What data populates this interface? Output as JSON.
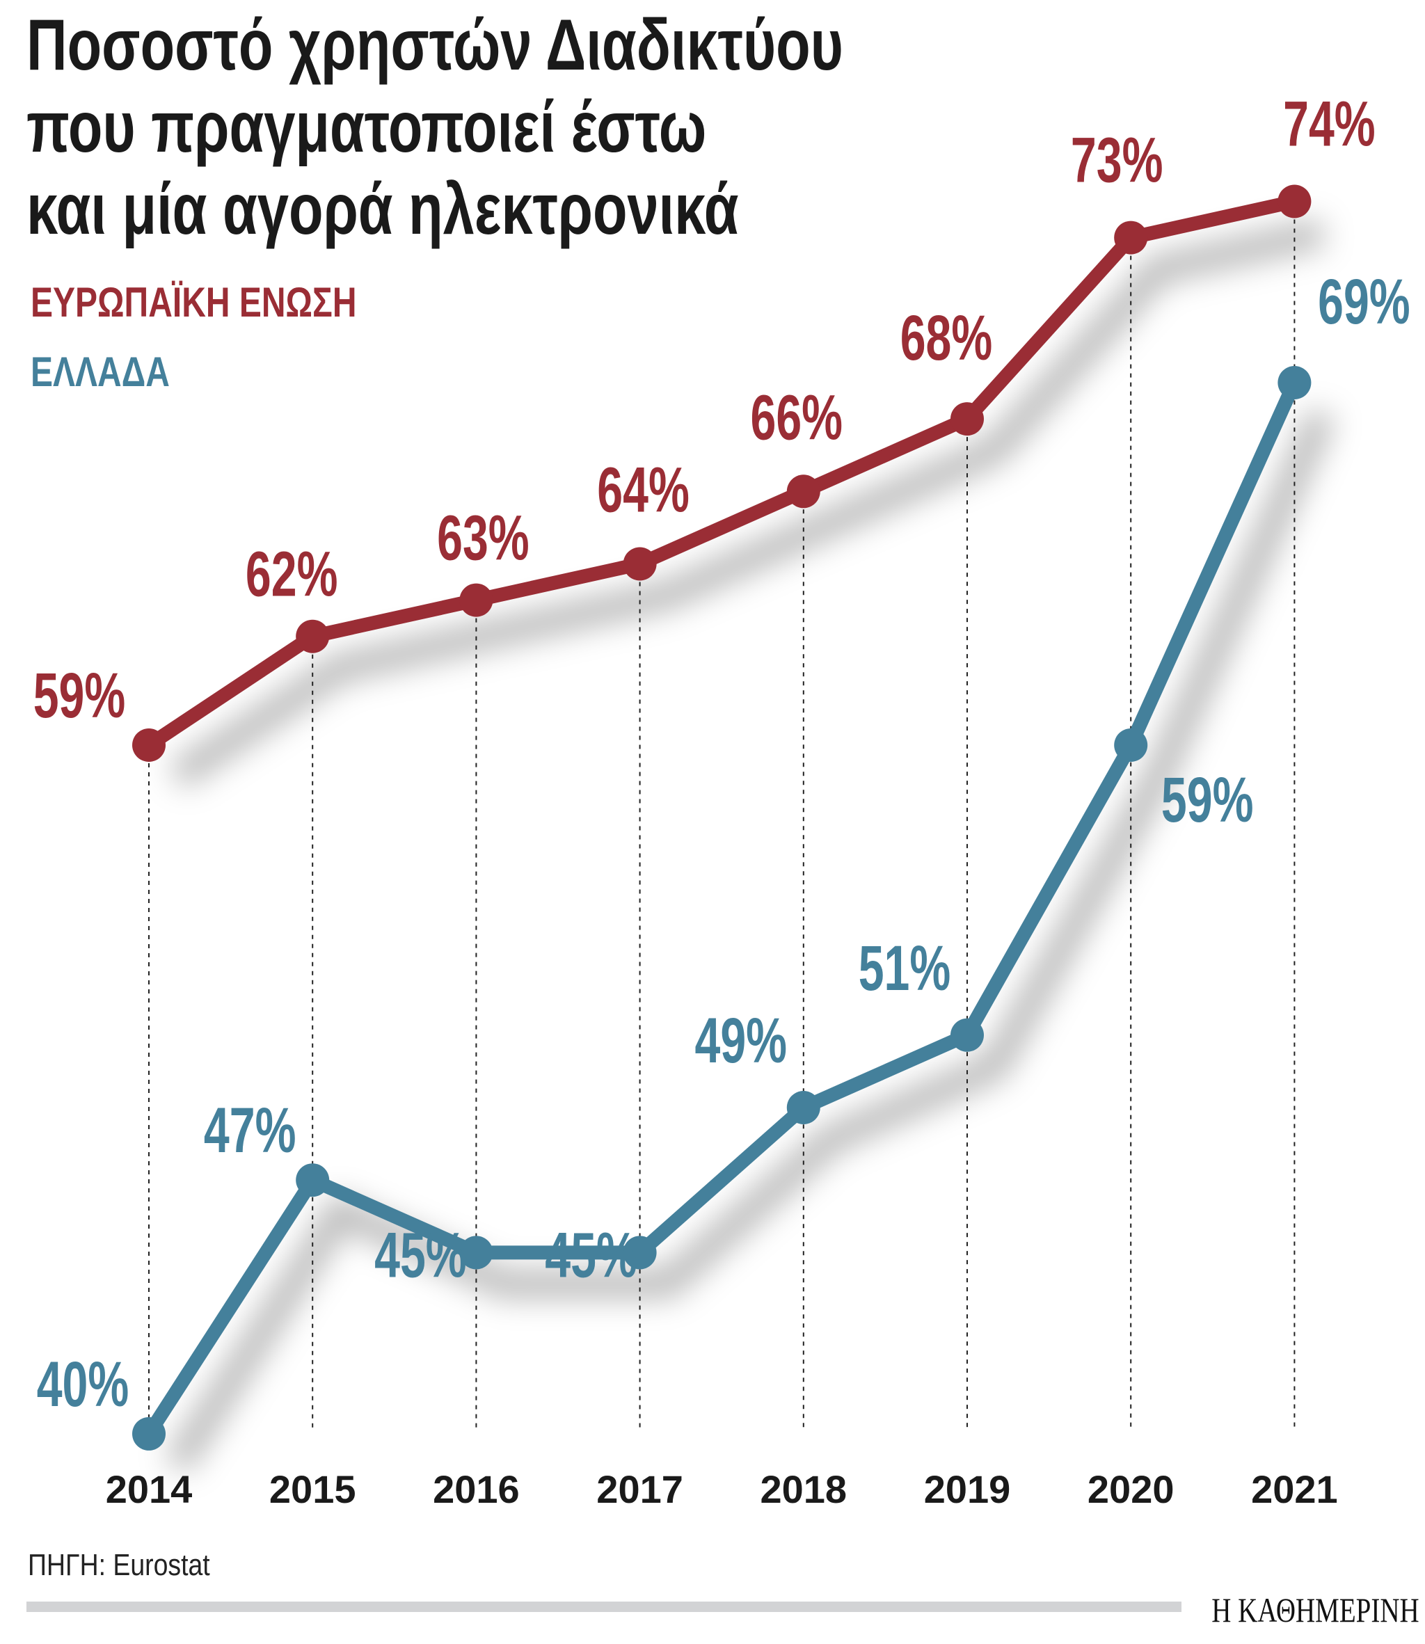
{
  "chart_data": {
    "type": "line",
    "title": "Ποσοστό χρηστών Διαδικτύου που πραγματοποιεί έστω και μία αγορά ηλεκτρονικά",
    "title_lines": [
      "Ποσοστό χρηστών Διαδικτύου",
      "που πραγματοποιεί έστω",
      "και μία αγορά ηλεκτρονικά"
    ],
    "categories": [
      "2014",
      "2015",
      "2016",
      "2017",
      "2018",
      "2019",
      "2020",
      "2021"
    ],
    "series": [
      {
        "name": "ΕΥΡΩΠΑΪΚΗ ΕΝΩΣΗ",
        "color": "#9a2d35",
        "values": [
          59,
          62,
          63,
          64,
          66,
          68,
          73,
          74
        ],
        "labels": [
          "59%",
          "62%",
          "63%",
          "64%",
          "66%",
          "68%",
          "73%",
          "74%"
        ]
      },
      {
        "name": "ΕΛΛΑΔΑ",
        "color": "#44809b",
        "values": [
          40,
          47,
          45,
          45,
          49,
          51,
          59,
          69
        ],
        "labels": [
          "40%",
          "47%",
          "45%",
          "45%",
          "49%",
          "51%",
          "59%",
          "69%"
        ]
      }
    ],
    "unit": "%",
    "grid": "dotted vertical drop lines",
    "legend_placement": "top-left",
    "source": "ΠΗΓΗ: Eurostat"
  },
  "branding": {
    "logo": "Η ΚΑΘΗΜΕΡΙΝΗ"
  }
}
